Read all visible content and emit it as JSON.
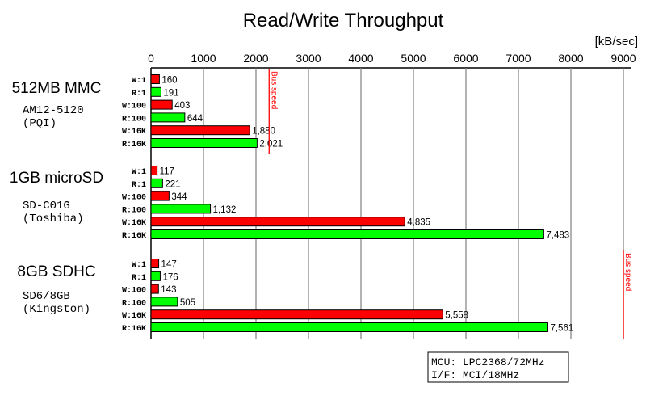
{
  "chart_data": {
    "type": "bar",
    "orientation": "horizontal",
    "title": "Read/Write Throughput",
    "unit_label": "[kB/sec]",
    "xlim": [
      0,
      9000
    ],
    "xticks": [
      0,
      1000,
      2000,
      3000,
      4000,
      5000,
      6000,
      7000,
      8000,
      9000
    ],
    "grid": true,
    "axis_position": "top",
    "colors": {
      "write": "#ff0000",
      "read": "#00ff00",
      "grid": "#808080",
      "bus_speed": "#ff0000"
    },
    "groups": [
      {
        "name": "512MB MMC",
        "model": "AM12-5120",
        "vendor": "(PQI)",
        "bars": [
          {
            "label": "W:1",
            "type": "write",
            "value": 160,
            "value_label": "160"
          },
          {
            "label": "R:1",
            "type": "read",
            "value": 191,
            "value_label": "191"
          },
          {
            "label": "W:100",
            "type": "write",
            "value": 403,
            "value_label": "403"
          },
          {
            "label": "R:100",
            "type": "read",
            "value": 644,
            "value_label": "644"
          },
          {
            "label": "W:16K",
            "type": "write",
            "value": 1880,
            "value_label": "1,880"
          },
          {
            "label": "R:16K",
            "type": "read",
            "value": 2021,
            "value_label": "2,021"
          }
        ],
        "bus_speed": {
          "label": "Bus speed",
          "value": 2250
        }
      },
      {
        "name": "1GB microSD",
        "model": "SD-C01G",
        "vendor": "(Toshiba)",
        "bars": [
          {
            "label": "W:1",
            "type": "write",
            "value": 117,
            "value_label": "117"
          },
          {
            "label": "R:1",
            "type": "read",
            "value": 221,
            "value_label": "221"
          },
          {
            "label": "W:100",
            "type": "write",
            "value": 344,
            "value_label": "344"
          },
          {
            "label": "R:100",
            "type": "read",
            "value": 1132,
            "value_label": "1,132"
          },
          {
            "label": "W:16K",
            "type": "write",
            "value": 4835,
            "value_label": "4,835"
          },
          {
            "label": "R:16K",
            "type": "read",
            "value": 7483,
            "value_label": "7,483"
          }
        ]
      },
      {
        "name": "8GB SDHC",
        "model": "SD6/8GB",
        "vendor": "(Kingston)",
        "bars": [
          {
            "label": "W:1",
            "type": "write",
            "value": 147,
            "value_label": "147"
          },
          {
            "label": "R:1",
            "type": "read",
            "value": 176,
            "value_label": "176"
          },
          {
            "label": "W:100",
            "type": "write",
            "value": 143,
            "value_label": "143"
          },
          {
            "label": "R:100",
            "type": "read",
            "value": 505,
            "value_label": "505"
          },
          {
            "label": "W:16K",
            "type": "write",
            "value": 5558,
            "value_label": "5,558"
          },
          {
            "label": "R:16K",
            "type": "read",
            "value": 7561,
            "value_label": "7,561"
          }
        ],
        "bus_speed": {
          "label": "Bus speed",
          "value": 9000
        }
      }
    ],
    "annotation": {
      "line1": "MCU: LPC2368/72MHz",
      "line2": "I/F: MCI/18MHz"
    }
  }
}
